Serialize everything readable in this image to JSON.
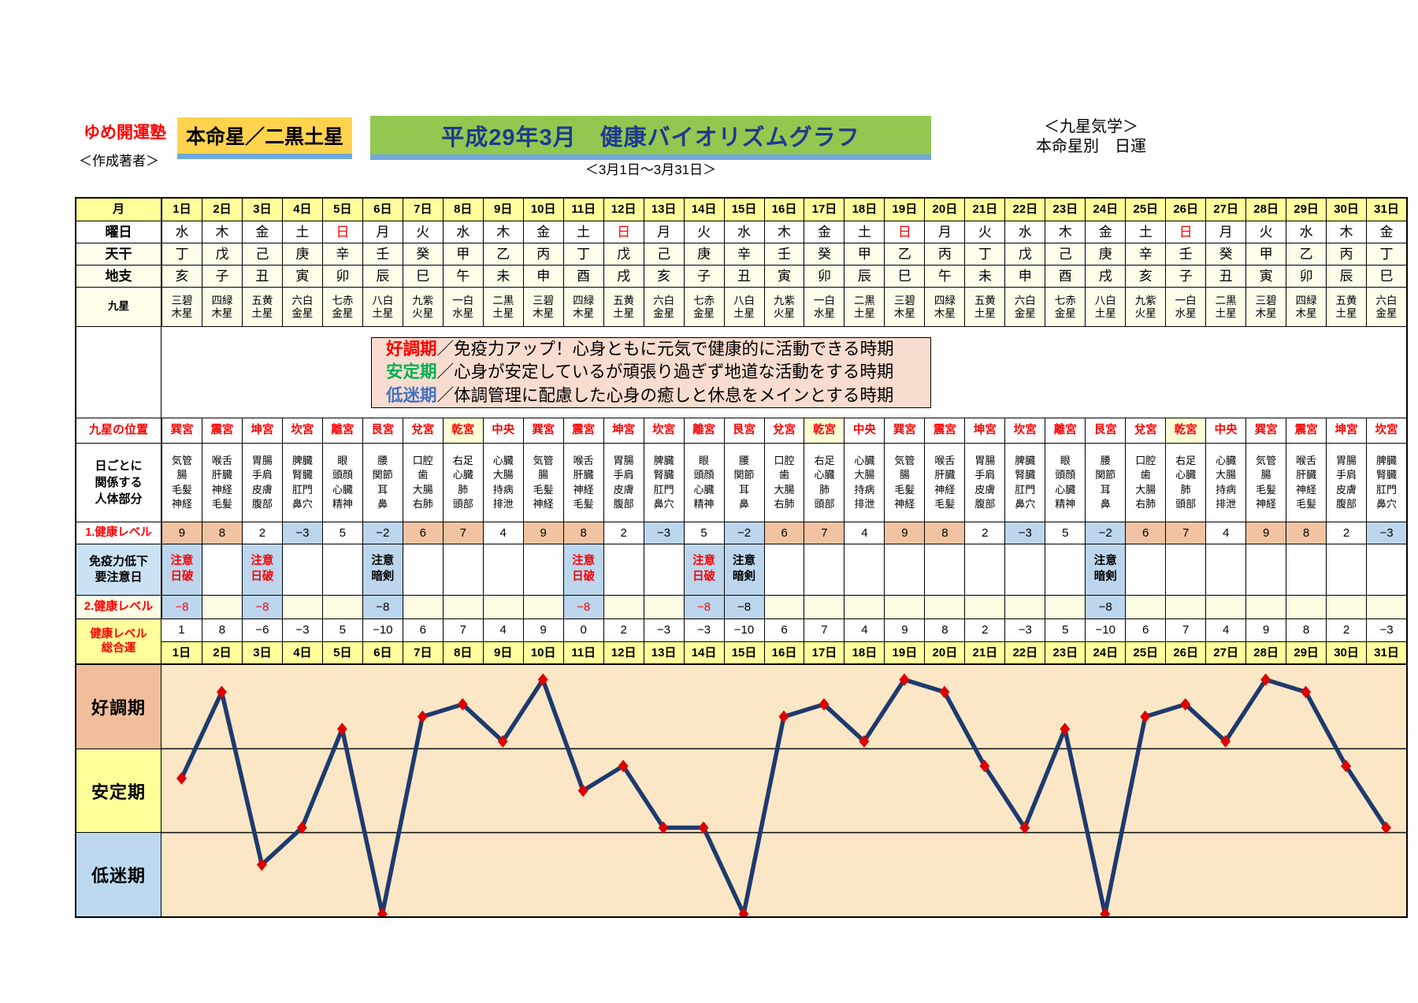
{
  "header": {
    "school": "ゆめ開運塾",
    "author": "＜作成著者＞",
    "honmeisei": "本命星／二黒土星",
    "title": "平成29年3月　健康バイオリズムグラフ",
    "kigaku": "＜九星気学＞",
    "nichiun": "本命星別　日運",
    "date_range": "＜3月1日～3月31日＞"
  },
  "colors": {
    "banner_green": "#92C850",
    "honmei_yellow": "#FFD34D",
    "title_blue": "#1F3890",
    "underline_blue": "#6FA8DC",
    "header_yellow": "#FFFF9C",
    "cream": "#FDFDEA",
    "salmon": "#F2C3A2",
    "light_blue": "#BCD6EE",
    "legend_pink": "#F9DCD0",
    "chart_bg": "#FBE7C5",
    "line_navy": "#1E3A6E",
    "marker_red": "#DD0000",
    "good_band_label": "#F1BE9C",
    "stable_band_label": "#FFFF99",
    "low_band_label": "#BDD9F0"
  },
  "legend": {
    "lines": [
      {
        "term": "好調期",
        "color": "#FF0000",
        "text": "／免疫力アップ！心身ともに元気で健康的に活動できる時期"
      },
      {
        "term": "安定期",
        "color": "#00B050",
        "text": "／心身が安定しているが頑張り過ぎず地道な活動をする時期"
      },
      {
        "term": "低迷期",
        "color": "#4472C4",
        "text": "／体調管理に配慮した心身の癒しと休息をメインとする時期"
      }
    ]
  },
  "table": {
    "labels": {
      "month": "月",
      "weekday": "曜日",
      "tenkan": "天干",
      "chishi": "地支",
      "kyusei": "九星",
      "position": "九星の位置",
      "body": [
        "日ごとに",
        "関係する",
        "人体部分"
      ],
      "level1": "1.健康レベル",
      "immunity": [
        "免疫力低下",
        "要注意日"
      ],
      "level2": "2.健康レベル",
      "total": [
        "健康レベル",
        "総合運"
      ]
    },
    "days": [
      "1日",
      "2日",
      "3日",
      "4日",
      "5日",
      "6日",
      "7日",
      "8日",
      "9日",
      "10日",
      "11日",
      "12日",
      "13日",
      "14日",
      "15日",
      "16日",
      "17日",
      "18日",
      "19日",
      "20日",
      "21日",
      "22日",
      "23日",
      "24日",
      "25日",
      "26日",
      "27日",
      "28日",
      "29日",
      "30日",
      "31日"
    ],
    "weekdays": [
      "水",
      "木",
      "金",
      "土",
      "日",
      "月",
      "火",
      "水",
      "木",
      "金",
      "土",
      "日",
      "月",
      "火",
      "水",
      "木",
      "金",
      "土",
      "日",
      "月",
      "火",
      "水",
      "木",
      "金",
      "土",
      "日",
      "月",
      "火",
      "水",
      "木",
      "金"
    ],
    "tenkan": [
      "丁",
      "戊",
      "己",
      "庚",
      "辛",
      "壬",
      "癸",
      "甲",
      "乙",
      "丙",
      "丁",
      "戊",
      "己",
      "庚",
      "辛",
      "壬",
      "癸",
      "甲",
      "乙",
      "丙",
      "丁",
      "戊",
      "己",
      "庚",
      "辛",
      "壬",
      "癸",
      "甲",
      "乙",
      "丙",
      "丁"
    ],
    "chishi": [
      "亥",
      "子",
      "丑",
      "寅",
      "卯",
      "辰",
      "巳",
      "午",
      "未",
      "申",
      "酉",
      "戌",
      "亥",
      "子",
      "丑",
      "寅",
      "卯",
      "辰",
      "巳",
      "午",
      "未",
      "申",
      "酉",
      "戌",
      "亥",
      "子",
      "丑",
      "寅",
      "卯",
      "辰",
      "巳"
    ],
    "kyusei": [
      [
        "三碧",
        "木星"
      ],
      [
        "四緑",
        "木星"
      ],
      [
        "五黄",
        "土星"
      ],
      [
        "六白",
        "金星"
      ],
      [
        "七赤",
        "金星"
      ],
      [
        "八白",
        "土星"
      ],
      [
        "九紫",
        "火星"
      ],
      [
        "一白",
        "水星"
      ],
      [
        "二黒",
        "土星"
      ],
      [
        "三碧",
        "木星"
      ],
      [
        "四緑",
        "木星"
      ],
      [
        "五黄",
        "土星"
      ],
      [
        "六白",
        "金星"
      ],
      [
        "七赤",
        "金星"
      ],
      [
        "八白",
        "土星"
      ],
      [
        "九紫",
        "火星"
      ],
      [
        "一白",
        "水星"
      ],
      [
        "二黒",
        "土星"
      ],
      [
        "三碧",
        "木星"
      ],
      [
        "四緑",
        "木星"
      ],
      [
        "五黄",
        "土星"
      ],
      [
        "六白",
        "金星"
      ],
      [
        "七赤",
        "金星"
      ],
      [
        "八白",
        "土星"
      ],
      [
        "九紫",
        "火星"
      ],
      [
        "一白",
        "水星"
      ],
      [
        "二黒",
        "土星"
      ],
      [
        "三碧",
        "木星"
      ],
      [
        "四緑",
        "木星"
      ],
      [
        "五黄",
        "土星"
      ],
      [
        "六白",
        "金星"
      ]
    ],
    "positions": [
      "巽宮",
      "震宮",
      "坤宮",
      "坎宮",
      "離宮",
      "艮宮",
      "兌宮",
      "乾宮",
      "中央",
      "巽宮",
      "震宮",
      "坤宮",
      "坎宮",
      "離宮",
      "艮宮",
      "兌宮",
      "乾宮",
      "中央",
      "巽宮",
      "震宮",
      "坤宮",
      "坎宮",
      "離宮",
      "艮宮",
      "兌宮",
      "乾宮",
      "中央",
      "巽宮",
      "震宮",
      "坤宮",
      "坎宮"
    ],
    "position_highlight_days": [
      8,
      17,
      26
    ],
    "body_parts": [
      [
        "気管",
        "腸",
        "毛髪",
        "神経"
      ],
      [
        "喉舌",
        "肝臓",
        "神経",
        "毛髪"
      ],
      [
        "胃腸",
        "手肩",
        "皮膚",
        "腹部"
      ],
      [
        "脾臓",
        "腎臓",
        "肛門",
        "鼻穴"
      ],
      [
        "眼",
        "頭顔",
        "心臓",
        "精神"
      ],
      [
        "腰",
        "関節",
        "耳",
        "鼻"
      ],
      [
        "口腔",
        "歯",
        "大腸",
        "右肺"
      ],
      [
        "右足",
        "心臓",
        "肺",
        "頭部"
      ],
      [
        "心臓",
        "大腸",
        "持病",
        "排泄"
      ],
      [
        "気管",
        "腸",
        "毛髪",
        "神経"
      ],
      [
        "喉舌",
        "肝臓",
        "神経",
        "毛髪"
      ],
      [
        "胃腸",
        "手肩",
        "皮膚",
        "腹部"
      ],
      [
        "脾臓",
        "腎臓",
        "肛門",
        "鼻穴"
      ],
      [
        "眼",
        "頭顔",
        "心臓",
        "精神"
      ],
      [
        "腰",
        "関節",
        "耳",
        "鼻"
      ],
      [
        "口腔",
        "歯",
        "大腸",
        "右肺"
      ],
      [
        "右足",
        "心臓",
        "肺",
        "頭部"
      ],
      [
        "心臓",
        "大腸",
        "持病",
        "排泄"
      ],
      [
        "気管",
        "腸",
        "毛髪",
        "神経"
      ],
      [
        "喉舌",
        "肝臓",
        "神経",
        "毛髪"
      ],
      [
        "胃腸",
        "手肩",
        "皮膚",
        "腹部"
      ],
      [
        "脾臓",
        "腎臓",
        "肛門",
        "鼻穴"
      ],
      [
        "眼",
        "頭顔",
        "心臓",
        "精神"
      ],
      [
        "腰",
        "関節",
        "耳",
        "鼻"
      ],
      [
        "口腔",
        "歯",
        "大腸",
        "右肺"
      ],
      [
        "右足",
        "心臓",
        "肺",
        "頭部"
      ],
      [
        "心臓",
        "大腸",
        "持病",
        "排泄"
      ],
      [
        "気管",
        "腸",
        "毛髪",
        "神経"
      ],
      [
        "喉舌",
        "肝臓",
        "神経",
        "毛髪"
      ],
      [
        "胃腸",
        "手肩",
        "皮膚",
        "腹部"
      ],
      [
        "脾臓",
        "腎臓",
        "肛門",
        "鼻穴"
      ]
    ],
    "level1": [
      "9",
      "8",
      "2",
      "−3",
      "5",
      "−2",
      "6",
      "7",
      "4",
      "9",
      "8",
      "2",
      "−3",
      "5",
      "−2",
      "6",
      "7",
      "4",
      "9",
      "8",
      "2",
      "−3",
      "5",
      "−2",
      "6",
      "7",
      "4",
      "9",
      "8",
      "2",
      "−3"
    ],
    "immunity": [
      {
        "lines": [
          "注意",
          "日破"
        ],
        "color": "red"
      },
      null,
      {
        "lines": [
          "注意",
          "日破"
        ],
        "color": "red"
      },
      null,
      null,
      {
        "lines": [
          "注意",
          "暗剣"
        ],
        "color": "black"
      },
      null,
      null,
      null,
      null,
      {
        "lines": [
          "注意",
          "日破"
        ],
        "color": "red"
      },
      null,
      null,
      {
        "lines": [
          "注意",
          "日破"
        ],
        "color": "red"
      },
      {
        "lines": [
          "注意",
          "暗剣"
        ],
        "color": "black"
      },
      null,
      null,
      null,
      null,
      null,
      null,
      null,
      null,
      {
        "lines": [
          "注意",
          "暗剣"
        ],
        "color": "black"
      },
      null,
      null,
      null,
      null,
      null,
      null,
      null
    ],
    "level2": [
      {
        "value": "−8",
        "color": "red"
      },
      null,
      {
        "value": "−8",
        "color": "red"
      },
      null,
      null,
      {
        "value": "−8",
        "color": "black"
      },
      null,
      null,
      null,
      null,
      {
        "value": "−8",
        "color": "red"
      },
      null,
      null,
      {
        "value": "−8",
        "color": "red"
      },
      {
        "value": "−8",
        "color": "black"
      },
      null,
      null,
      null,
      null,
      null,
      null,
      null,
      null,
      {
        "value": "−8",
        "color": "black"
      },
      null,
      null,
      null,
      null,
      null,
      null,
      null
    ],
    "total": [
      "1",
      "8",
      "−6",
      "−3",
      "5",
      "−10",
      "6",
      "7",
      "4",
      "9",
      "0",
      "2",
      "−3",
      "−3",
      "−10",
      "6",
      "7",
      "4",
      "9",
      "8",
      "2",
      "−3",
      "5",
      "−10",
      "6",
      "7",
      "4",
      "9",
      "8",
      "2",
      "−3"
    ]
  },
  "chart_data": {
    "type": "line",
    "title": "平成29年3月　健康バイオリズムグラフ",
    "x": [
      "1日",
      "2日",
      "3日",
      "4日",
      "5日",
      "6日",
      "7日",
      "8日",
      "9日",
      "10日",
      "11日",
      "12日",
      "13日",
      "14日",
      "15日",
      "16日",
      "17日",
      "18日",
      "19日",
      "20日",
      "21日",
      "22日",
      "23日",
      "24日",
      "25日",
      "26日",
      "27日",
      "28日",
      "29日",
      "30日",
      "31日"
    ],
    "series": [
      {
        "name": "健康レベル総合運",
        "values": [
          1,
          8,
          -6,
          -3,
          5,
          -10,
          6,
          7,
          4,
          9,
          0,
          2,
          -3,
          -3,
          -10,
          6,
          7,
          4,
          9,
          8,
          2,
          -3,
          5,
          -10,
          6,
          7,
          4,
          9,
          8,
          2,
          -3
        ]
      }
    ],
    "ylim": [
      -10,
      10
    ],
    "grid": false,
    "bands": [
      {
        "label": "好調期",
        "range": [
          3.33,
          10
        ]
      },
      {
        "label": "安定期",
        "range": [
          -3.33,
          3.33
        ]
      },
      {
        "label": "低迷期",
        "range": [
          -10,
          -3.33
        ]
      }
    ],
    "marker": "diamond"
  }
}
